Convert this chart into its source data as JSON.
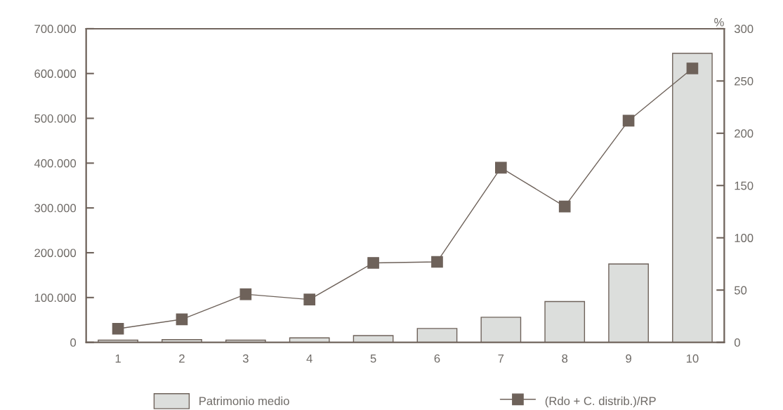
{
  "chart_data": {
    "type": "bar",
    "categories": [
      "1",
      "2",
      "3",
      "4",
      "5",
      "6",
      "7",
      "8",
      "9",
      "10"
    ],
    "y2label": "%",
    "series": [
      {
        "name": "Patrimonio medio",
        "color": "#dcdedc",
        "values": [
          5000,
          6000,
          5000,
          10000,
          15000,
          31000,
          56000,
          91000,
          175000,
          645000
        ]
      },
      {
        "name": "(Rdo + C. distrib.)/RP",
        "type": "line",
        "axis": "y2",
        "color": "#6e625a",
        "marker": "square",
        "values": [
          13,
          22,
          46,
          41,
          76,
          77,
          167,
          130,
          212,
          262
        ]
      }
    ],
    "ylim": [
      0,
      700000
    ],
    "yticks": [
      0,
      {
        "value": 100000,
        "label": "100.000"
      },
      {
        "value": 200000,
        "label": "200.000"
      },
      {
        "value": 300000,
        "label": "300.000"
      },
      {
        "value": 400000,
        "label": "400.000"
      },
      {
        "value": 500000,
        "label": "500.000"
      },
      {
        "value": 600000,
        "label": "600.000"
      },
      {
        "value": 700000,
        "label": "700.000"
      }
    ],
    "y2lim": [
      0,
      300
    ],
    "y2ticks": [
      0,
      50,
      100,
      150,
      200,
      250,
      300
    ],
    "grid": false,
    "legend": "bottom"
  }
}
